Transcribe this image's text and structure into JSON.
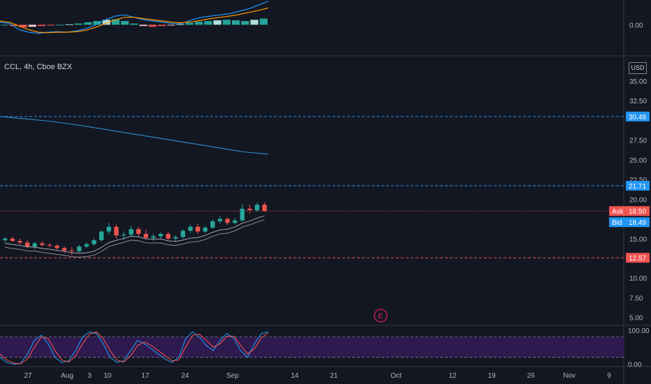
{
  "symbol_info": "CCL, 4h, Cboe BZX",
  "currency": "USD",
  "price_labels": {
    "upper": "30.48",
    "mid": "21.71",
    "ask_tag": "Ask",
    "ask": "18.50",
    "bid_tag": "Bid",
    "bid": "18.49",
    "low": "12.57"
  },
  "earnings_marker": "E",
  "colors": {
    "background": "#131722",
    "up": "#26a69a",
    "down": "#ef5350",
    "blue_line": "#2196f3",
    "orange_line": "#ff9800",
    "rsi_band": "#2e1a4f"
  },
  "chart_data": [
    {
      "type": "line",
      "title": "MACD panel",
      "ylim": [
        -1.2,
        1.0
      ],
      "y_ticks": [
        "0.00"
      ],
      "series": [
        {
          "values": [
            0.1,
            0.05,
            -0.2,
            -0.3,
            -0.35,
            -0.3,
            -0.28,
            -0.3,
            -0.25,
            -0.15,
            0.0,
            0.2,
            0.35,
            0.4,
            0.3,
            0.2,
            0.15,
            0.1,
            0.05,
            0.05,
            0.2,
            0.3,
            0.35,
            0.4,
            0.45,
            0.55,
            0.65,
            0.8,
            0.95
          ]
        },
        {
          "values": [
            0.15,
            0.1,
            -0.05,
            -0.2,
            -0.3,
            -0.32,
            -0.3,
            -0.3,
            -0.28,
            -0.22,
            -0.1,
            0.05,
            0.2,
            0.3,
            0.3,
            0.25,
            0.2,
            0.15,
            0.1,
            0.08,
            0.12,
            0.18,
            0.25,
            0.3,
            0.35,
            0.42,
            0.5,
            0.58,
            0.68
          ]
        }
      ],
      "histogram": [
        0.0,
        -0.05,
        -0.1,
        -0.08,
        -0.05,
        -0.02,
        0.0,
        0.02,
        0.05,
        0.1,
        0.15,
        0.2,
        0.22,
        0.15,
        0.05,
        -0.05,
        -0.08,
        -0.05,
        -0.02,
        0.02,
        0.08,
        0.12,
        0.15,
        0.18,
        0.2,
        0.18,
        0.15,
        0.2,
        0.25
      ]
    },
    {
      "type": "candlestick",
      "title": "",
      "ylim": [
        4,
        38
      ],
      "y_ticks": [
        "35.00",
        "32.50",
        "27.50",
        "25.00",
        "22.50",
        "20.00",
        "15.00",
        "12.50",
        "10.00",
        "7.50",
        "5.00"
      ],
      "horizontal_lines": [
        30.48,
        21.71,
        18.5,
        12.57
      ],
      "candles_ohlc_approx": [
        [
          14.8,
          15.2,
          14.5,
          15.0
        ],
        [
          15.0,
          15.3,
          14.6,
          14.7
        ],
        [
          14.7,
          15.0,
          14.3,
          14.5
        ],
        [
          14.5,
          14.8,
          13.8,
          14.0
        ],
        [
          14.0,
          14.6,
          13.7,
          14.4
        ],
        [
          14.4,
          14.7,
          14.0,
          14.2
        ],
        [
          14.2,
          14.4,
          13.9,
          14.1
        ],
        [
          14.1,
          14.3,
          13.6,
          13.8
        ],
        [
          13.8,
          14.0,
          13.2,
          13.5
        ],
        [
          13.5,
          13.9,
          12.9,
          13.4
        ],
        [
          13.4,
          14.2,
          13.3,
          14.0
        ],
        [
          14.0,
          14.5,
          13.8,
          14.3
        ],
        [
          14.3,
          15.0,
          14.1,
          14.8
        ],
        [
          14.8,
          16.0,
          14.6,
          15.9
        ],
        [
          15.9,
          17.0,
          15.5,
          16.5
        ],
        [
          16.5,
          16.8,
          15.0,
          15.4
        ],
        [
          15.4,
          15.9,
          14.8,
          15.5
        ],
        [
          15.5,
          16.6,
          15.3,
          16.2
        ],
        [
          16.2,
          16.5,
          15.2,
          15.6
        ],
        [
          15.6,
          16.1,
          14.9,
          15.1
        ],
        [
          15.1,
          15.6,
          14.7,
          15.3
        ],
        [
          15.3,
          15.8,
          15.0,
          15.6
        ],
        [
          15.6,
          15.9,
          14.8,
          15.0
        ],
        [
          15.0,
          15.4,
          14.6,
          15.2
        ],
        [
          15.2,
          16.2,
          15.0,
          16.0
        ],
        [
          16.0,
          16.8,
          15.7,
          16.5
        ],
        [
          16.5,
          16.9,
          15.6,
          15.9
        ],
        [
          15.9,
          16.6,
          15.7,
          16.4
        ],
        [
          16.4,
          17.4,
          16.2,
          17.2
        ],
        [
          17.2,
          17.9,
          16.9,
          17.5
        ],
        [
          17.5,
          17.7,
          16.7,
          17.0
        ],
        [
          17.0,
          17.6,
          16.8,
          17.3
        ],
        [
          17.3,
          19.4,
          17.2,
          18.8
        ],
        [
          18.8,
          19.3,
          18.2,
          18.6
        ],
        [
          18.6,
          19.6,
          18.4,
          19.3
        ],
        [
          19.3,
          19.6,
          18.4,
          18.5
        ]
      ],
      "series": [
        {
          "values": [
            30.48,
            30.2,
            29.9,
            29.5,
            29.0,
            28.5,
            28.0,
            27.5,
            27.0,
            26.5,
            26.0,
            25.7
          ]
        }
      ],
      "annotations": [
        "E"
      ]
    },
    {
      "type": "line",
      "title": "Stochastic RSI panel",
      "ylim": [
        -5,
        110
      ],
      "y_ticks": [
        "100.00",
        "0.00"
      ],
      "band": [
        20,
        80
      ],
      "series": [
        {
          "values": [
            20,
            5,
            0,
            2,
            30,
            70,
            85,
            60,
            20,
            5,
            10,
            40,
            80,
            95,
            90,
            60,
            20,
            5,
            10,
            40,
            70,
            60,
            45,
            30,
            15,
            5,
            20,
            75,
            95,
            80,
            55,
            40,
            70,
            90,
            75,
            40,
            20,
            60,
            90,
            95
          ]
        },
        {
          "values": [
            30,
            12,
            3,
            1,
            15,
            50,
            80,
            75,
            40,
            12,
            6,
            25,
            60,
            88,
            95,
            75,
            40,
            12,
            6,
            25,
            55,
            65,
            55,
            40,
            25,
            10,
            12,
            50,
            85,
            88,
            70,
            50,
            60,
            82,
            82,
            55,
            30,
            45,
            78,
            92
          ]
        }
      ]
    }
  ],
  "x_axis_labels": [
    "27",
    "Aug",
    "3",
    "10",
    "17",
    "24",
    "Sep",
    "14",
    "21",
    "Oct",
    "12",
    "19",
    "26",
    "Nov",
    "9"
  ]
}
